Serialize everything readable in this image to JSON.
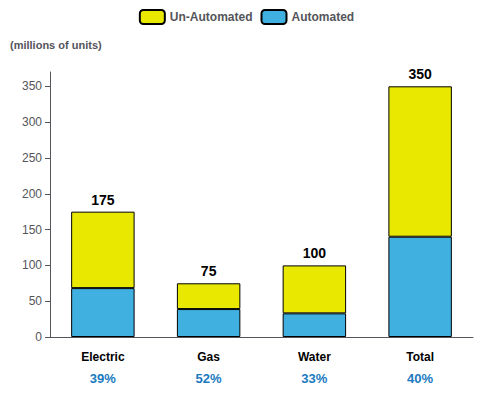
{
  "chart_data": {
    "type": "bar",
    "stacked": true,
    "ylabel": "(millions of units)",
    "categories": [
      "Electric",
      "Gas",
      "Water",
      "Total"
    ],
    "series": [
      {
        "name": "Automated",
        "color": "#40b0e0",
        "values": [
          68.25,
          39.0,
          33.0,
          140.0
        ]
      },
      {
        "name": "Un-Automated",
        "color": "#e8e800",
        "values": [
          106.75,
          36.0,
          67.0,
          210.0
        ]
      }
    ],
    "totals": [
      175,
      75,
      100,
      350
    ],
    "annotations": {
      "texts": [
        "39%",
        "52%",
        "33%",
        "40%"
      ],
      "color": "#1a7abf"
    },
    "ylim": [
      0,
      370
    ],
    "yticks": [
      0,
      50,
      100,
      150,
      200,
      250,
      300,
      350
    ],
    "legend": "top",
    "grid": false
  }
}
